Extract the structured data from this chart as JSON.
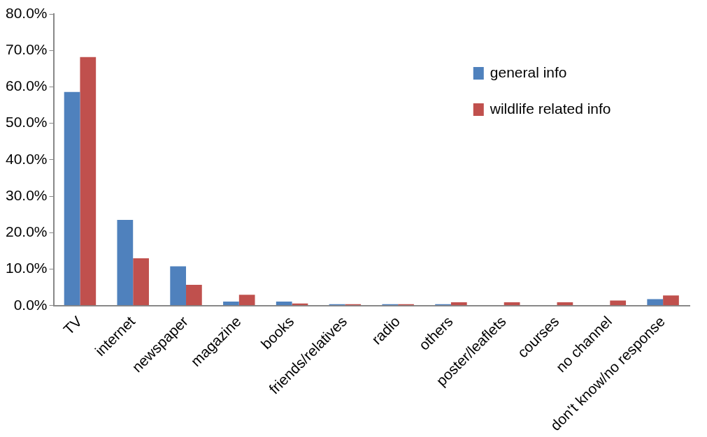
{
  "chart_data": {
    "type": "bar",
    "categories": [
      "TV",
      "internet",
      "newspaper",
      "magazine",
      "books",
      "friends/relatives",
      "radio",
      "others",
      "poster/leaflets",
      "courses",
      "no channel",
      "don't know/no response"
    ],
    "series": [
      {
        "name": "general info",
        "color": "#4f81bd",
        "values": [
          58.6,
          23.5,
          10.8,
          1.1,
          1.1,
          0.4,
          0.4,
          0.4,
          0,
          0,
          0,
          1.8
        ]
      },
      {
        "name": "wildlife related info",
        "color": "#c0504d",
        "values": [
          68.2,
          13.0,
          5.7,
          3.0,
          0.6,
          0.4,
          0.4,
          0.9,
          0.9,
          0.9,
          1.4,
          2.8
        ]
      }
    ],
    "ylim": [
      0,
      80
    ],
    "yticks": [
      {
        "value": 0,
        "label": "0.0%"
      },
      {
        "value": 10,
        "label": "10.0%"
      },
      {
        "value": 20,
        "label": "20.0%"
      },
      {
        "value": 30,
        "label": "30.0%"
      },
      {
        "value": 40,
        "label": "40.0%"
      },
      {
        "value": 50,
        "label": "50.0%"
      },
      {
        "value": 60,
        "label": "60.0%"
      },
      {
        "value": 70,
        "label": "70.0%"
      },
      {
        "value": 80,
        "label": "80.0%"
      }
    ],
    "grid": false,
    "legend": "top right"
  }
}
